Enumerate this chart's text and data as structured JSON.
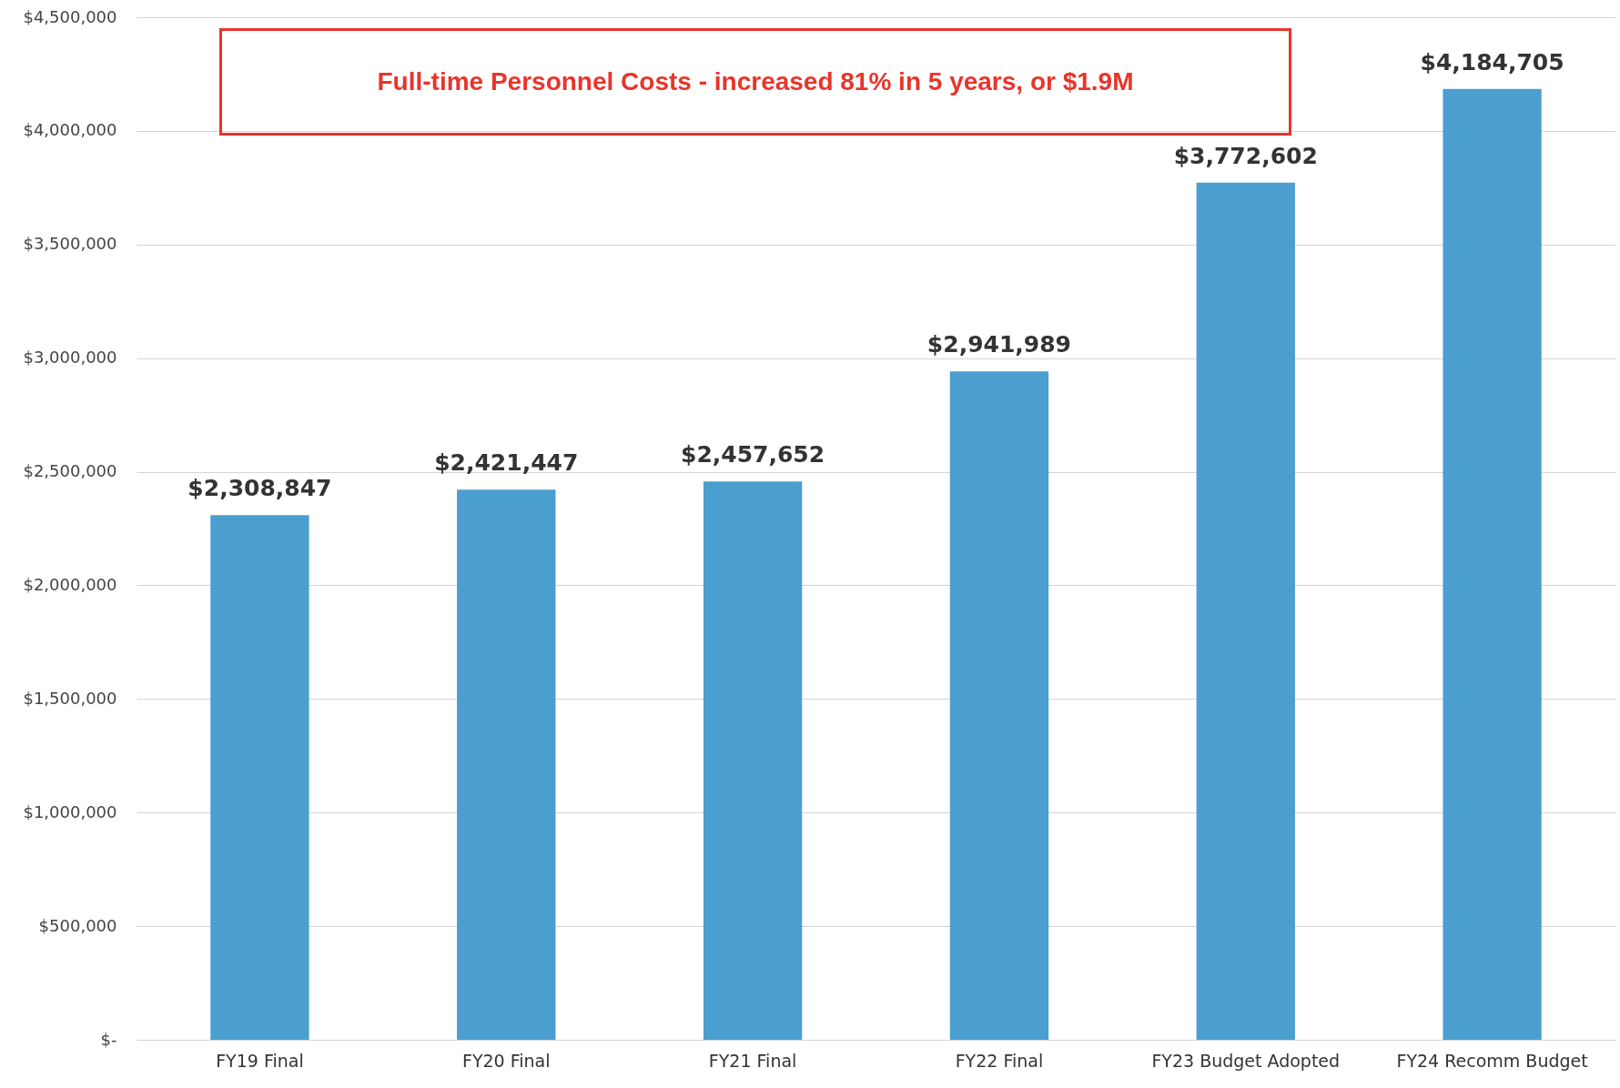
{
  "chart_data": {
    "type": "bar",
    "title": "Full-time Personnel Costs - increased 81% in 5 years, or $1.9M",
    "categories": [
      "FY19 Final",
      "FY20 Final",
      "FY21 Final",
      "FY22 Final",
      "FY23 Budget Adopted",
      "FY24 Recomm Budget"
    ],
    "values": [
      2308847,
      2421447,
      2457652,
      2941989,
      3772602,
      4184705
    ],
    "color": "#4b9fcf",
    "value_labels": [
      "$2,308,847",
      "$2,421,447",
      "$2,457,652",
      "$2,941,989",
      "$3,772,602",
      "$4,184,705"
    ],
    "ylim": [
      0,
      4500000
    ],
    "yticks": [
      {
        "value": 0,
        "label": "$-"
      },
      {
        "value": 500000,
        "label": "$500,000"
      },
      {
        "value": 1000000,
        "label": "$1,000,000"
      },
      {
        "value": 1500000,
        "label": "$1,500,000"
      },
      {
        "value": 2000000,
        "label": "$2,000,000"
      },
      {
        "value": 2500000,
        "label": "$2,500,000"
      },
      {
        "value": 3000000,
        "label": "$3,000,000"
      },
      {
        "value": 3500000,
        "label": "$3,500,000"
      },
      {
        "value": 4000000,
        "label": "$4,000,000"
      },
      {
        "value": 4500000,
        "label": "$4,500,000"
      }
    ],
    "grid": "y"
  }
}
